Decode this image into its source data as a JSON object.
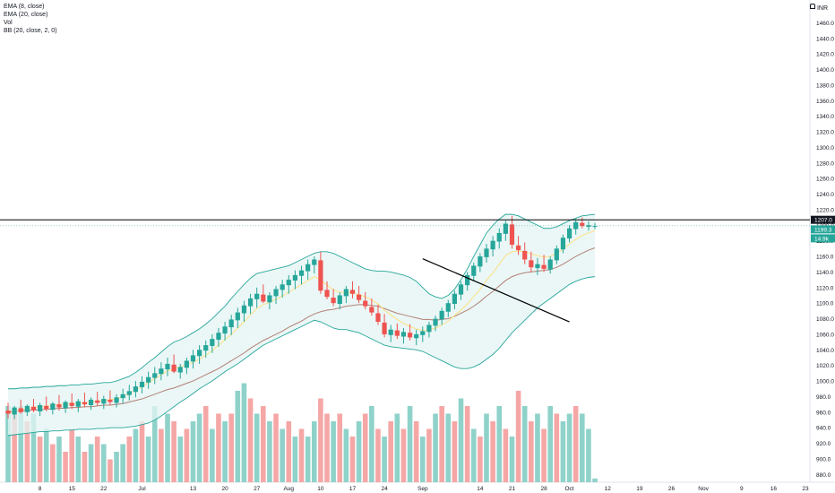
{
  "legend": {
    "ema8": "EMA (8, close)",
    "ema20": "EMA (20, close)",
    "vol": "Vol",
    "bb": "BB (20, close, 2, 0)"
  },
  "currency": "INR",
  "price_labels": {
    "resistance": "1207.0",
    "last": "1199.3",
    "volume": "14.9k"
  },
  "colors": {
    "up": "#26a69a",
    "down": "#ef5350",
    "vol_up": "#8fd2ca",
    "vol_down": "#f5a7a6",
    "bb_line": "#26a69a",
    "bb_fill": "#e3f4f3",
    "ema8": "#ffe082",
    "ema20": "#b38076",
    "resistance": "#000000",
    "trendline": "#000000"
  },
  "chart_data": {
    "type": "candlestick",
    "y_axis": {
      "range": [
        870,
        1480
      ],
      "ticks": [
        880.0,
        900.0,
        920.0,
        940.0,
        960.0,
        980.0,
        1000.0,
        1020.0,
        1040.0,
        1060.0,
        1080.0,
        1100.0,
        1120.0,
        1140.0,
        1160.0,
        1180.0,
        1200.0,
        1220.0,
        1240.0,
        1260.0,
        1280.0,
        1300.0,
        1320.0,
        1340.0,
        1360.0,
        1380.0,
        1400.0,
        1420.0,
        1440.0,
        1460.0
      ]
    },
    "x_axis": {
      "ticks": [
        {
          "label": "8",
          "index": 5
        },
        {
          "label": "15",
          "index": 10
        },
        {
          "label": "22",
          "index": 15
        },
        {
          "label": "Jul",
          "index": 21
        },
        {
          "label": "13",
          "index": 29
        },
        {
          "label": "20",
          "index": 34
        },
        {
          "label": "27",
          "index": 39
        },
        {
          "label": "Aug",
          "index": 44
        },
        {
          "label": "10",
          "index": 49
        },
        {
          "label": "17",
          "index": 54
        },
        {
          "label": "24",
          "index": 59
        },
        {
          "label": "Sep",
          "index": 65
        },
        {
          "label": "14",
          "index": 74
        },
        {
          "label": "21",
          "index": 79
        },
        {
          "label": "28",
          "index": 84
        },
        {
          "label": "Oct",
          "index": 88
        },
        {
          "label": "12",
          "index": 94
        },
        {
          "label": "19",
          "index": 99
        },
        {
          "label": "26",
          "index": 104
        },
        {
          "label": "Nov",
          "index": 109
        },
        {
          "label": "9",
          "index": 115
        },
        {
          "label": "16",
          "index": 120
        },
        {
          "label": "23",
          "index": 125
        }
      ]
    },
    "ohlc": [
      [
        962,
        972,
        952,
        958
      ],
      [
        957,
        968,
        951,
        966
      ],
      [
        965,
        976,
        958,
        960
      ],
      [
        960,
        970,
        955,
        968
      ],
      [
        967,
        977,
        960,
        962
      ],
      [
        961,
        972,
        955,
        969
      ],
      [
        968,
        980,
        961,
        964
      ],
      [
        963,
        973,
        957,
        971
      ],
      [
        970,
        982,
        962,
        966
      ],
      [
        965,
        975,
        959,
        973
      ],
      [
        972,
        984,
        964,
        968
      ],
      [
        967,
        977,
        960,
        974
      ],
      [
        973,
        985,
        966,
        970
      ],
      [
        969,
        979,
        963,
        976
      ],
      [
        975,
        986,
        968,
        972
      ],
      [
        971,
        981,
        964,
        977
      ],
      [
        976,
        988,
        969,
        973
      ],
      [
        972,
        983,
        966,
        979
      ],
      [
        978,
        990,
        971,
        983
      ],
      [
        982,
        995,
        975,
        987
      ],
      [
        986,
        1000,
        979,
        993
      ],
      [
        992,
        1006,
        984,
        999
      ],
      [
        998,
        1012,
        990,
        1005
      ],
      [
        1004,
        1018,
        996,
        1010
      ],
      [
        1009,
        1024,
        1001,
        1016
      ],
      [
        1015,
        1030,
        1006,
        1022
      ],
      [
        1021,
        1034,
        1010,
        1012
      ],
      [
        1011,
        1022,
        1003,
        1018
      ],
      [
        1017,
        1030,
        1009,
        1026
      ],
      [
        1025,
        1040,
        1016,
        1033
      ],
      [
        1032,
        1046,
        1022,
        1040
      ],
      [
        1039,
        1052,
        1030,
        1046
      ],
      [
        1045,
        1060,
        1036,
        1054
      ],
      [
        1053,
        1068,
        1044,
        1062
      ],
      [
        1061,
        1076,
        1052,
        1070
      ],
      [
        1069,
        1085,
        1059,
        1079
      ],
      [
        1078,
        1094,
        1068,
        1088
      ],
      [
        1087,
        1103,
        1076,
        1097
      ],
      [
        1096,
        1112,
        1086,
        1106
      ],
      [
        1105,
        1120,
        1094,
        1112
      ],
      [
        1111,
        1124,
        1100,
        1102
      ],
      [
        1101,
        1114,
        1092,
        1110
      ],
      [
        1109,
        1122,
        1099,
        1118
      ],
      [
        1117,
        1130,
        1107,
        1124
      ],
      [
        1123,
        1136,
        1112,
        1130
      ],
      [
        1129,
        1142,
        1118,
        1136
      ],
      [
        1135,
        1148,
        1124,
        1142
      ],
      [
        1141,
        1156,
        1130,
        1150
      ],
      [
        1149,
        1160,
        1138,
        1156
      ],
      [
        1155,
        1166,
        1112,
        1116
      ],
      [
        1117,
        1128,
        1105,
        1108
      ],
      [
        1107,
        1118,
        1096,
        1100
      ],
      [
        1099,
        1114,
        1092,
        1110
      ],
      [
        1109,
        1122,
        1100,
        1118
      ],
      [
        1117,
        1128,
        1106,
        1112
      ],
      [
        1111,
        1122,
        1100,
        1104
      ],
      [
        1103,
        1114,
        1092,
        1096
      ],
      [
        1095,
        1106,
        1084,
        1088
      ],
      [
        1087,
        1098,
        1072,
        1076
      ],
      [
        1075,
        1086,
        1056,
        1060
      ],
      [
        1059,
        1072,
        1050,
        1066
      ],
      [
        1065,
        1074,
        1054,
        1058
      ],
      [
        1057,
        1068,
        1048,
        1063
      ],
      [
        1062,
        1073,
        1052,
        1056
      ],
      [
        1055,
        1066,
        1046,
        1060
      ],
      [
        1059,
        1070,
        1050,
        1064
      ],
      [
        1063,
        1076,
        1056,
        1072
      ],
      [
        1071,
        1084,
        1064,
        1080
      ],
      [
        1079,
        1094,
        1072,
        1090
      ],
      [
        1089,
        1104,
        1082,
        1100
      ],
      [
        1099,
        1116,
        1092,
        1112
      ],
      [
        1111,
        1128,
        1104,
        1124
      ],
      [
        1123,
        1140,
        1116,
        1136
      ],
      [
        1135,
        1152,
        1128,
        1148
      ],
      [
        1147,
        1164,
        1140,
        1160
      ],
      [
        1159,
        1176,
        1152,
        1170
      ],
      [
        1169,
        1186,
        1160,
        1180
      ],
      [
        1179,
        1196,
        1170,
        1190
      ],
      [
        1189,
        1206,
        1180,
        1202
      ],
      [
        1201,
        1212,
        1170,
        1175
      ],
      [
        1174,
        1186,
        1162,
        1168
      ],
      [
        1167,
        1178,
        1150,
        1156
      ],
      [
        1155,
        1166,
        1140,
        1146
      ],
      [
        1145,
        1158,
        1136,
        1150
      ],
      [
        1149,
        1162,
        1140,
        1144
      ],
      [
        1143,
        1160,
        1138,
        1156
      ],
      [
        1155,
        1174,
        1150,
        1170
      ],
      [
        1169,
        1188,
        1164,
        1184
      ],
      [
        1183,
        1200,
        1178,
        1196
      ],
      [
        1195,
        1208,
        1188,
        1204
      ],
      [
        1203,
        1210,
        1196,
        1199
      ],
      [
        1198,
        1205,
        1193,
        1200
      ],
      [
        1199,
        1203,
        1195,
        1199
      ]
    ],
    "ema8": [
      958,
      961,
      963,
      965,
      966,
      967,
      968,
      969,
      970,
      970,
      971,
      971,
      972,
      973,
      974,
      975,
      976,
      977,
      980,
      984,
      988,
      993,
      998,
      1003,
      1008,
      1013,
      1016,
      1018,
      1021,
      1024,
      1028,
      1033,
      1039,
      1046,
      1053,
      1060,
      1068,
      1076,
      1085,
      1093,
      1098,
      1101,
      1105,
      1109,
      1114,
      1119,
      1124,
      1129,
      1134,
      1130,
      1123,
      1117,
      1114,
      1114,
      1113,
      1111,
      1108,
      1104,
      1099,
      1091,
      1085,
      1079,
      1074,
      1070,
      1067,
      1065,
      1066,
      1068,
      1072,
      1077,
      1084,
      1091,
      1099,
      1108,
      1118,
      1129,
      1139,
      1150,
      1161,
      1166,
      1167,
      1166,
      1163,
      1161,
      1159,
      1160,
      1164,
      1169,
      1176,
      1182,
      1187,
      1190,
      1193
    ],
    "ema20": [
      960,
      961,
      962,
      962,
      963,
      963,
      964,
      964,
      965,
      965,
      966,
      966,
      967,
      967,
      968,
      969,
      969,
      970,
      971,
      973,
      975,
      977,
      980,
      983,
      986,
      989,
      991,
      994,
      997,
      1000,
      1004,
      1008,
      1012,
      1016,
      1021,
      1026,
      1031,
      1036,
      1042,
      1047,
      1052,
      1056,
      1060,
      1064,
      1069,
      1073,
      1077,
      1082,
      1086,
      1089,
      1091,
      1092,
      1094,
      1096,
      1097,
      1098,
      1098,
      1097,
      1096,
      1093,
      1090,
      1087,
      1085,
      1083,
      1081,
      1079,
      1079,
      1078,
      1079,
      1080,
      1083,
      1087,
      1091,
      1096,
      1102,
      1109,
      1115,
      1122,
      1129,
      1134,
      1137,
      1139,
      1140,
      1141,
      1142,
      1143,
      1146,
      1150,
      1155,
      1160,
      1164,
      1168,
      1171
    ],
    "bb_upper": [
      990,
      990,
      991,
      991,
      992,
      992,
      993,
      993,
      994,
      994,
      995,
      995,
      996,
      996,
      997,
      998,
      998,
      1000,
      1003,
      1006,
      1011,
      1017,
      1024,
      1030,
      1037,
      1044,
      1050,
      1053,
      1057,
      1062,
      1067,
      1073,
      1080,
      1088,
      1096,
      1106,
      1115,
      1124,
      1132,
      1138,
      1140,
      1142,
      1144,
      1146,
      1148,
      1152,
      1156,
      1160,
      1164,
      1166,
      1166,
      1164,
      1160,
      1156,
      1152,
      1148,
      1144,
      1142,
      1141,
      1141,
      1140,
      1138,
      1136,
      1133,
      1128,
      1120,
      1112,
      1108,
      1106,
      1110,
      1118,
      1130,
      1144,
      1160,
      1175,
      1190,
      1200,
      1208,
      1214,
      1214,
      1212,
      1208,
      1204,
      1200,
      1196,
      1196,
      1198,
      1202,
      1206,
      1209,
      1212,
      1213,
      1214
    ],
    "bb_lower": [
      930,
      931,
      932,
      933,
      934,
      935,
      935,
      936,
      936,
      937,
      937,
      938,
      938,
      938,
      939,
      939,
      940,
      940,
      940,
      941,
      942,
      944,
      946,
      950,
      955,
      961,
      967,
      973,
      978,
      984,
      990,
      995,
      1000,
      1006,
      1012,
      1017,
      1022,
      1028,
      1034,
      1040,
      1046,
      1050,
      1054,
      1058,
      1062,
      1066,
      1070,
      1074,
      1078,
      1076,
      1072,
      1068,
      1066,
      1066,
      1064,
      1062,
      1058,
      1054,
      1050,
      1046,
      1044,
      1043,
      1042,
      1041,
      1040,
      1038,
      1034,
      1030,
      1026,
      1022,
      1018,
      1016,
      1016,
      1018,
      1022,
      1028,
      1034,
      1042,
      1052,
      1062,
      1070,
      1078,
      1086,
      1094,
      1100,
      1106,
      1112,
      1118,
      1124,
      1128,
      1131,
      1133,
      1134
    ],
    "volume": [
      [
        1.0,
        1
      ],
      [
        0.9,
        0
      ],
      [
        1.0,
        1
      ],
      [
        0.8,
        0
      ],
      [
        0.9,
        1
      ],
      [
        0.6,
        0
      ],
      [
        0.7,
        1
      ],
      [
        0.5,
        0
      ],
      [
        0.6,
        1
      ],
      [
        0.4,
        0
      ],
      [
        0.7,
        0
      ],
      [
        0.6,
        1
      ],
      [
        0.4,
        0
      ],
      [
        0.5,
        1
      ],
      [
        0.6,
        0
      ],
      [
        0.5,
        1
      ],
      [
        0.3,
        0
      ],
      [
        0.4,
        1
      ],
      [
        0.5,
        1
      ],
      [
        0.6,
        0
      ],
      [
        0.7,
        1
      ],
      [
        0.8,
        0
      ],
      [
        0.6,
        1
      ],
      [
        1.0,
        1
      ],
      [
        0.7,
        0
      ],
      [
        0.9,
        1
      ],
      [
        0.8,
        0
      ],
      [
        0.6,
        1
      ],
      [
        0.7,
        0
      ],
      [
        0.8,
        1
      ],
      [
        0.9,
        1
      ],
      [
        1.0,
        0
      ],
      [
        0.7,
        1
      ],
      [
        0.9,
        0
      ],
      [
        0.8,
        1
      ],
      [
        0.9,
        0
      ],
      [
        1.2,
        1
      ],
      [
        1.3,
        1
      ],
      [
        1.1,
        0
      ],
      [
        0.9,
        1
      ],
      [
        1.0,
        0
      ],
      [
        0.8,
        1
      ],
      [
        0.9,
        0
      ],
      [
        0.7,
        1
      ],
      [
        0.8,
        0
      ],
      [
        0.6,
        1
      ],
      [
        0.7,
        0
      ],
      [
        0.6,
        1
      ],
      [
        0.8,
        1
      ],
      [
        1.1,
        0
      ],
      [
        0.9,
        0
      ],
      [
        0.8,
        1
      ],
      [
        0.9,
        0
      ],
      [
        0.7,
        1
      ],
      [
        0.6,
        0
      ],
      [
        0.8,
        1
      ],
      [
        0.9,
        0
      ],
      [
        1.0,
        1
      ],
      [
        0.7,
        0
      ],
      [
        0.6,
        1
      ],
      [
        0.8,
        0
      ],
      [
        0.9,
        1
      ],
      [
        0.7,
        0
      ],
      [
        1.0,
        1
      ],
      [
        0.8,
        0
      ],
      [
        0.6,
        1
      ],
      [
        0.7,
        0
      ],
      [
        0.9,
        1
      ],
      [
        1.0,
        0
      ],
      [
        0.9,
        1
      ],
      [
        0.8,
        0
      ],
      [
        1.1,
        1
      ],
      [
        1.0,
        0
      ],
      [
        0.7,
        1
      ],
      [
        0.6,
        0
      ],
      [
        0.9,
        1
      ],
      [
        0.8,
        0
      ],
      [
        1.0,
        1
      ],
      [
        0.7,
        0
      ],
      [
        0.6,
        1
      ],
      [
        1.2,
        0
      ],
      [
        1.0,
        1
      ],
      [
        0.8,
        0
      ],
      [
        0.9,
        1
      ],
      [
        0.7,
        0
      ],
      [
        1.0,
        1
      ],
      [
        0.9,
        0
      ],
      [
        0.8,
        1
      ],
      [
        0.9,
        1
      ],
      [
        1.0,
        0
      ],
      [
        0.9,
        1
      ],
      [
        0.7,
        1
      ],
      [
        0.05,
        1
      ]
    ],
    "resistance_level": 1207,
    "last_price": 1199.3,
    "trendline": {
      "from": [
        65,
        1157
      ],
      "to": [
        88,
        1076
      ]
    }
  }
}
